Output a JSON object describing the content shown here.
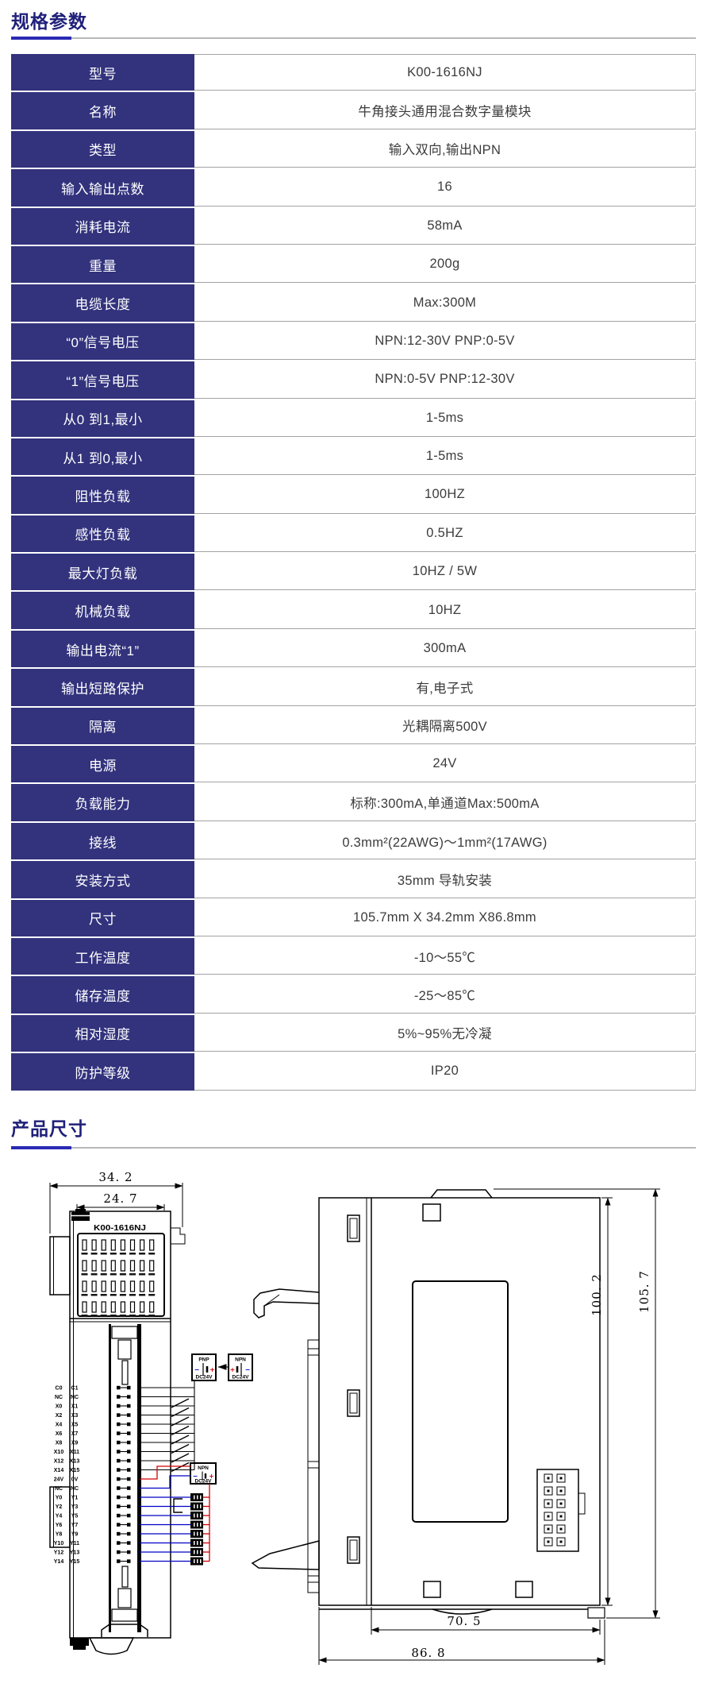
{
  "header": {
    "specs_title": "规格参数",
    "dims_title": "产品尺寸"
  },
  "colors": {
    "navy": "#32327d",
    "navy_title": "#20207a",
    "accent": "#2a2ab4",
    "gray_line": "#b8b8b8",
    "row_line": "#a3a3a3",
    "value_text": "#3c3c3c",
    "wire_blue": "#0000c8",
    "wire_red": "#d40000"
  },
  "spec_table": {
    "rows": [
      {
        "label": "型号",
        "value": "K00-1616NJ"
      },
      {
        "label": "名称",
        "value": "牛角接头通用混合数字量模块"
      },
      {
        "label": "类型",
        "value": "输入双向,输出NPN"
      },
      {
        "label": "输入输出点数",
        "value": "16"
      },
      {
        "label": "消耗电流",
        "value": "58mA"
      },
      {
        "label": "重量",
        "value": "200g"
      },
      {
        "label": "电缆长度",
        "value": "Max:300M"
      },
      {
        "label": "“0”信号电压",
        "value": "NPN:12-30V PNP:0-5V"
      },
      {
        "label": "“1”信号电压",
        "value": "NPN:0-5V PNP:12-30V"
      },
      {
        "label": "从0 到1,最小",
        "value": "1-5ms"
      },
      {
        "label": "从1 到0,最小",
        "value": "1-5ms"
      },
      {
        "label": "阻性负载",
        "value": "100HZ"
      },
      {
        "label": "感性负载",
        "value": "0.5HZ"
      },
      {
        "label": "最大灯负载",
        "value": "10HZ / 5W"
      },
      {
        "label": "机械负载",
        "value": "10HZ"
      },
      {
        "label": "输出电流“1”",
        "value": "300mA"
      },
      {
        "label": "输出短路保护",
        "value": "有,电子式"
      },
      {
        "label": "隔离",
        "value": "光耦隔离500V"
      },
      {
        "label": "电源",
        "value": "24V"
      },
      {
        "label": "负载能力",
        "value": "标称:300mA,单通道Max:500mA"
      },
      {
        "label": "接线",
        "value": "0.3mm²(22AWG)～1mm²(17AWG)"
      },
      {
        "label": "安装方式",
        "value": "35mm 导轨安装"
      },
      {
        "label": "尺寸",
        "value": "105.7mm X 34.2mm X86.8mm"
      },
      {
        "label": "工作温度",
        "value": "-10～55℃"
      },
      {
        "label": "储存温度",
        "value": "-25～85℃"
      },
      {
        "label": "相对湿度",
        "value": "5%~95%无冷凝"
      },
      {
        "label": "防护等级",
        "value": "IP20"
      }
    ]
  },
  "drawing": {
    "front_view": {
      "model_label": "K00-1616NJ",
      "dims": {
        "width_outer": "34. 2",
        "width_inner": "24. 7"
      },
      "pin_rows": [
        [
          "C0",
          "C1"
        ],
        [
          "NC",
          "NC"
        ],
        [
          "X0",
          "X1"
        ],
        [
          "X2",
          "X3"
        ],
        [
          "X4",
          "X5"
        ],
        [
          "X6",
          "X7"
        ],
        [
          "X8",
          "X9"
        ],
        [
          "X10",
          "X11"
        ],
        [
          "X12",
          "X13"
        ],
        [
          "X14",
          "X15"
        ],
        [
          "24V",
          "0V"
        ],
        [
          "NC",
          "NC"
        ],
        [
          "Y0",
          "Y1"
        ],
        [
          "Y2",
          "Y3"
        ],
        [
          "Y4",
          "Y5"
        ],
        [
          "Y6",
          "Y7"
        ],
        [
          "Y8",
          "Y9"
        ],
        [
          "Y10",
          "Y11"
        ],
        [
          "Y12",
          "Y13"
        ],
        [
          "Y14",
          "Y15"
        ]
      ],
      "supplies": {
        "pnp_top": {
          "type": "PNP",
          "voltage": "DC24V",
          "minus": "−",
          "plus": "+"
        },
        "npn_top": {
          "type": "NPN",
          "voltage": "DC24V",
          "minus": "−",
          "plus": "+"
        },
        "npn_bottom": {
          "type": "NPN",
          "voltage": "DC24V",
          "minus": "−",
          "plus": "+"
        }
      }
    },
    "side_view": {
      "dims": {
        "height_inner": "100. 2",
        "height_outer": "105. 7",
        "depth_inner": "70. 5",
        "depth_outer": "86. 8"
      }
    }
  }
}
